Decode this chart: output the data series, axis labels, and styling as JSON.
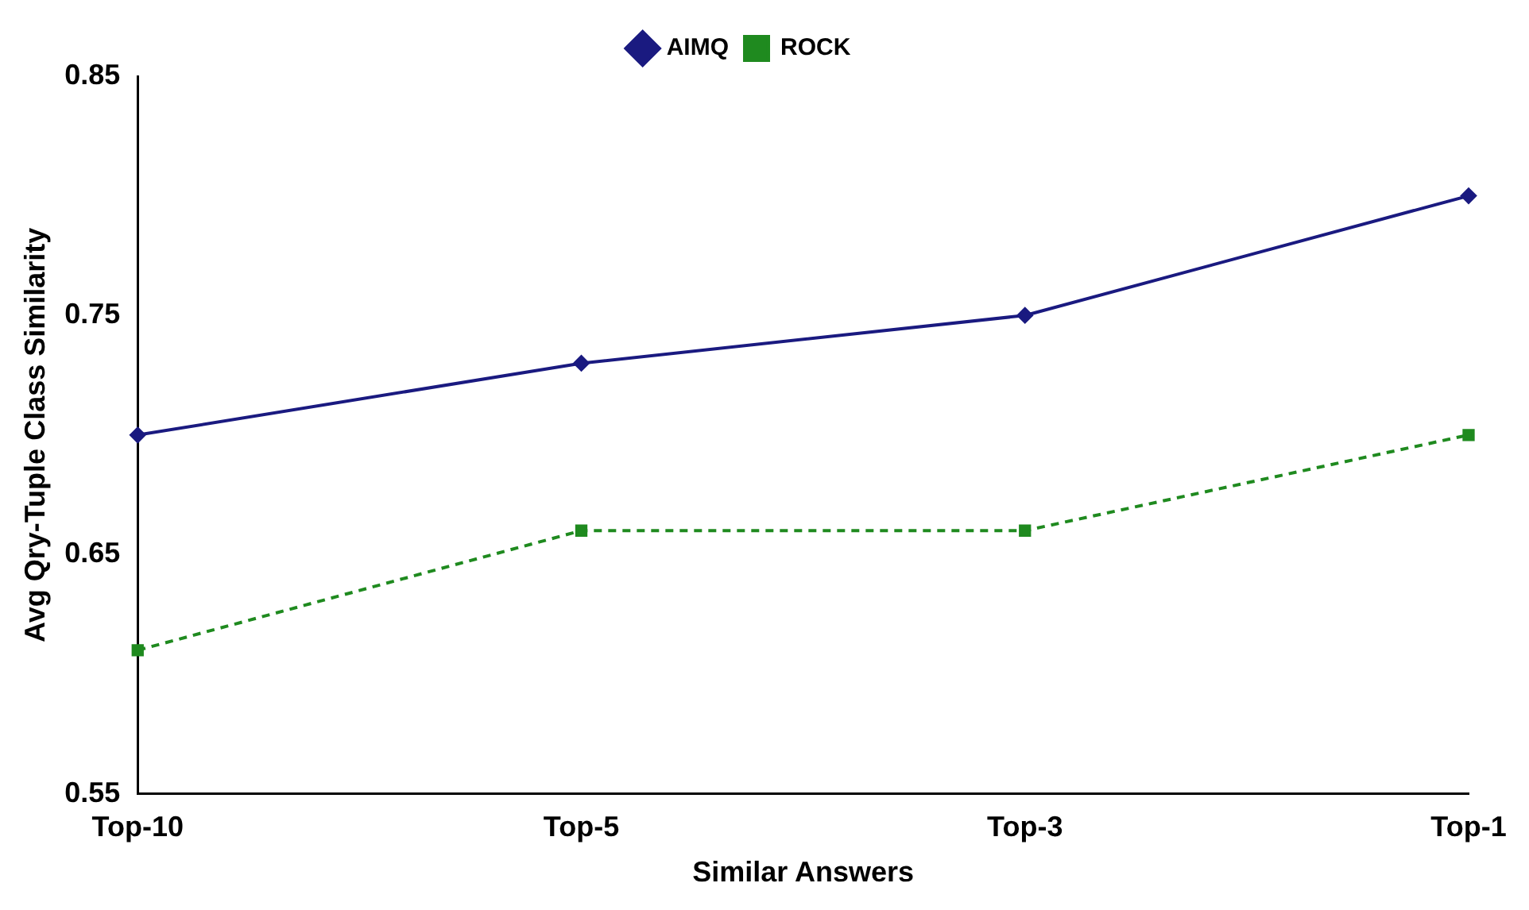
{
  "chart_data": {
    "type": "line",
    "xlabel": "Similar Answers",
    "ylabel": "Avg Qry-Tuple Class Similarity",
    "categories": [
      "Top-10",
      "Top-5",
      "Top-3",
      "Top-1"
    ],
    "series": [
      {
        "name": "AIMQ",
        "color": "#1a1a80",
        "values": [
          0.7,
          0.73,
          0.75,
          0.8
        ],
        "marker": "diamond",
        "line_style": "solid"
      },
      {
        "name": "ROCK",
        "color": "#1f8a1f",
        "values": [
          0.61,
          0.66,
          0.66,
          0.7
        ],
        "marker": "square",
        "line_style": "dashed"
      }
    ],
    "ylim": [
      0.55,
      0.85
    ],
    "yticks": [
      0.55,
      0.65,
      0.75,
      0.85
    ],
    "grid": false,
    "legend": "top"
  }
}
